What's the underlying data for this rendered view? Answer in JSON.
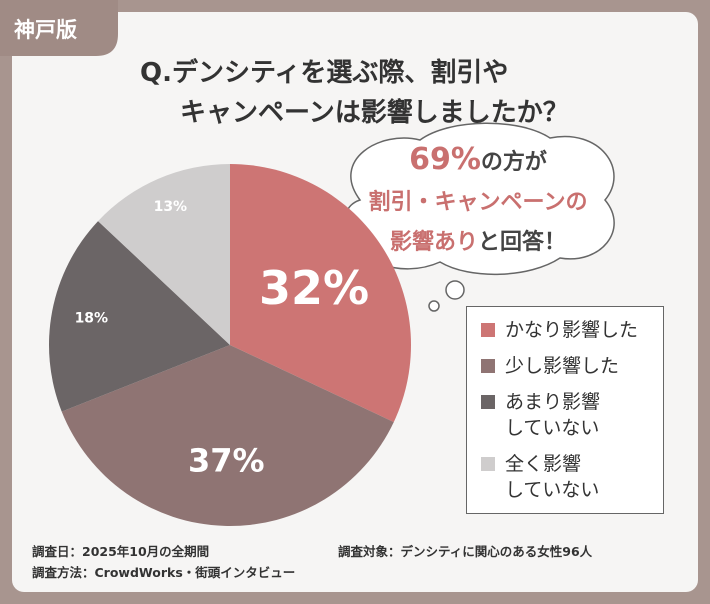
{
  "badge": "神戸版",
  "title": [
    "Q.デンシティを選ぶ際、割引や",
    "キャンペーンは影響しましたか？"
  ],
  "callout": [
    "69%",
    "の方が",
    "割引・キャンペーンの",
    "影響あり",
    "と回答！"
  ],
  "chart_data": {
    "type": "pie",
    "categories": [
      "かなり影響した",
      "少し影響した",
      "あまり影響\nしていない",
      "全く影響\nしていない"
    ],
    "values": [
      32,
      37,
      18,
      13
    ],
    "value_labels": [
      "32%",
      "37%",
      "18%",
      "13%"
    ],
    "colors": [
      "#cd7574",
      "#8f7473",
      "#6b6566",
      "#cfcdcd"
    ]
  },
  "footer": [
    "調査日：2025年10月の全期間",
    "調査方法：CrowdWorks・街頭インタビュー",
    "調査対象：デンシティに関心のある女性96人"
  ]
}
